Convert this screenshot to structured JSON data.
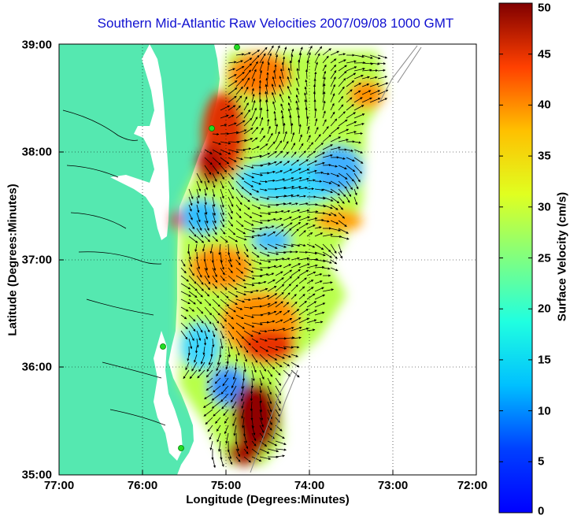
{
  "title": "Southern Mid-Atlantic Raw Velocities 2007/09/08 1000 GMT",
  "xlabel": "Longitude (Degrees:Minutes)",
  "ylabel": "Latitude (Degrees:Minutes)",
  "colorbar_label": "Surface Velocity (cm/s)",
  "x_ticks": [
    "77:00",
    "76:00",
    "75:00",
    "74:00",
    "73:00",
    "72:00"
  ],
  "y_ticks": [
    "39:00",
    "38:00",
    "37:00",
    "36:00",
    "35:00"
  ],
  "colorbar_ticks": [
    "50",
    "45",
    "40",
    "35",
    "30",
    "25",
    "20",
    "15",
    "10",
    "5",
    "0"
  ],
  "colors": {
    "land": "#55e8b0",
    "water": "#ffffff",
    "title": "#1010d0",
    "station": "#22dd22"
  },
  "chart_data": {
    "type": "heatmap",
    "title": "Southern Mid-Atlantic Raw Velocities 2007/09/08 1000 GMT",
    "xlabel": "Longitude (Degrees:Minutes)",
    "ylabel": "Latitude (Degrees:Minutes)",
    "xlim": [
      -77,
      -72
    ],
    "ylim": [
      35,
      39
    ],
    "colorbar": {
      "label": "Surface Velocity (cm/s)",
      "range": [
        0,
        50
      ],
      "colormap": "jet"
    },
    "grid": "dotted",
    "stations": [
      {
        "lon": -74.9,
        "lat": 39.0
      },
      {
        "lon": -75.1,
        "lat": 38.23
      },
      {
        "lon": -75.5,
        "lat": 36.19
      },
      {
        "lon": -75.4,
        "lat": 35.27
      }
    ]
  }
}
